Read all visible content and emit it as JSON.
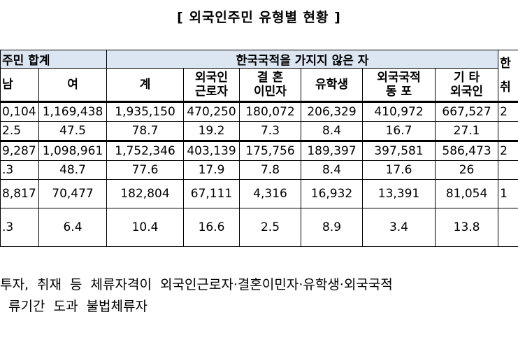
{
  "title": "[ 외국인주민 유형별 현황 ]",
  "table": {
    "header_group_total": "주민 합계",
    "header_group_foreign": "한국국적을 가지지 않은 자",
    "header_group_naturalized": [
      "한",
      "취"
    ],
    "columns": [
      [
        "남"
      ],
      [
        "여"
      ],
      [
        "계"
      ],
      [
        "외국인",
        "근로자"
      ],
      [
        "결 혼",
        "이민자"
      ],
      [
        "유학생"
      ],
      [
        "외국국적",
        "동 포"
      ],
      [
        "기 타",
        "외국인"
      ]
    ],
    "rows": [
      [
        "0,104",
        "1,169,438",
        "1,935,150",
        "470,250",
        "180,072",
        "206,329",
        "410,972",
        "667,527",
        "2"
      ],
      [
        "2.5",
        "47.5",
        "78.7",
        "19.2",
        "7.3",
        "8.4",
        "16.7",
        "27.1",
        ""
      ],
      [
        "9,287",
        "1,098,961",
        "1,752,346",
        "403,139",
        "175,756",
        "189,397",
        "397,581",
        "586,473",
        "2"
      ],
      [
        ".3",
        "48.7",
        "77.6",
        "17.9",
        "7.8",
        "8.4",
        "17.6",
        "26",
        ""
      ],
      [
        "8,817",
        "70,477",
        "182,804",
        "67,111",
        "4,316",
        "16,932",
        "13,391",
        "81,054",
        "1"
      ],
      [
        ".3",
        "6.4",
        "10.4",
        "16.6",
        "2.5",
        "8.9",
        "3.4",
        "13.8",
        ""
      ]
    ]
  },
  "footnotes": [
    "투자, 취재 등 체류자격이 외국인근로자·결혼이민자·유학생·외국국적",
    " 류기간 도과 불법체류자"
  ]
}
